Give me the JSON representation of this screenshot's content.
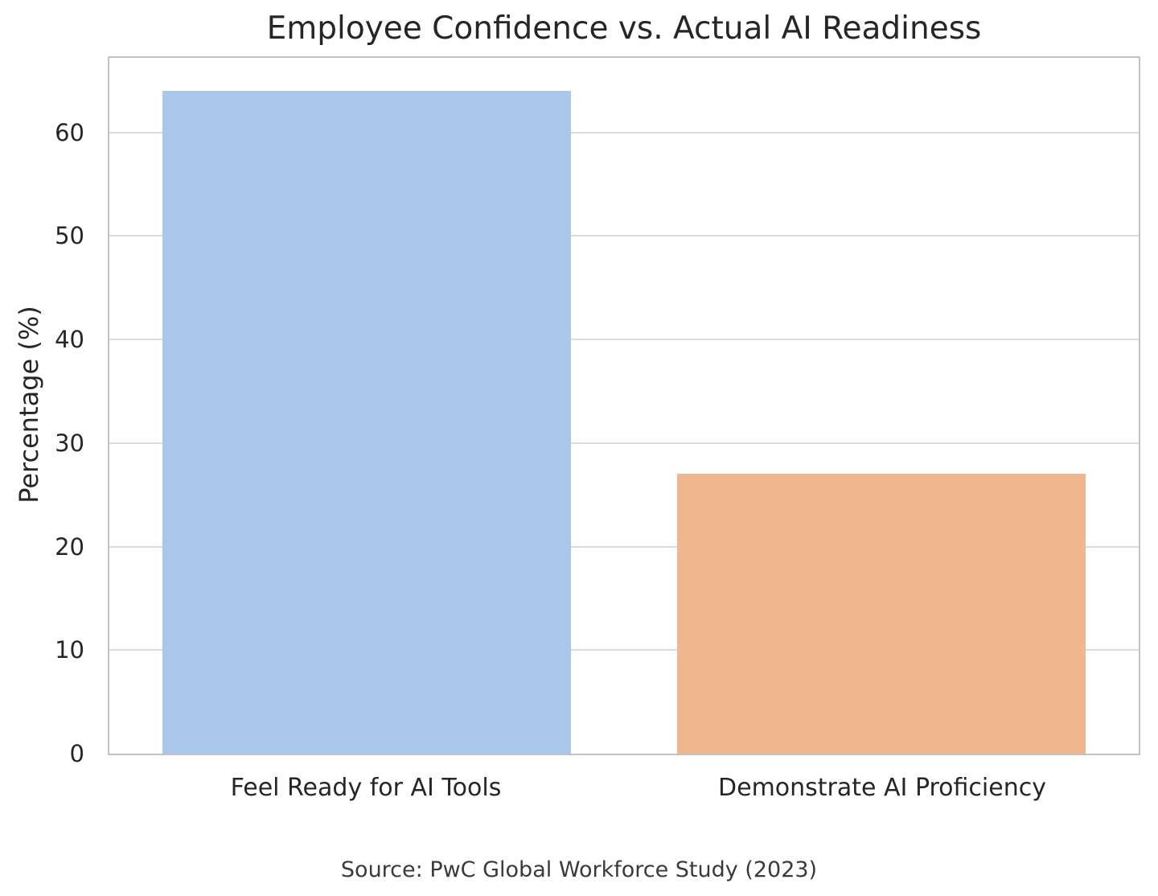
{
  "source_note": "Source: PwC Global Workforce Study (2023)",
  "chart_data": {
    "type": "bar",
    "title": "Employee Confidence vs. Actual AI Readiness",
    "categories": [
      "Feel Ready for AI Tools",
      "Demonstrate AI Proficiency"
    ],
    "values": [
      64,
      27
    ],
    "bar_colors": [
      "#aac7e9",
      "#f0b68d"
    ],
    "xlabel": "",
    "ylabel": "Percentage (%)",
    "ylim": [
      0,
      67.2
    ],
    "yticks": [
      0,
      10,
      20,
      30,
      40,
      50,
      60
    ],
    "grid": "horizontal",
    "legend": "none",
    "bar_width_pct": 39.64,
    "annotation": "Source: PwC Global Workforce Study (2023)"
  }
}
